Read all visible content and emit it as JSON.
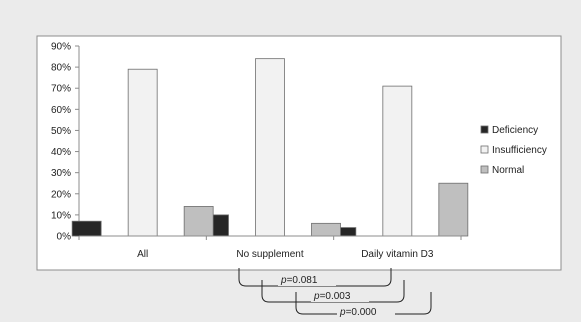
{
  "chart_data": {
    "type": "bar",
    "title": "",
    "xlabel": "",
    "ylabel": "",
    "categories": [
      "All",
      "No supplement",
      "Daily vitamin  D3"
    ],
    "series": [
      {
        "name": "Deficiency",
        "values": [
          7,
          10,
          4
        ],
        "color": "#262626"
      },
      {
        "name": "Insufficiency",
        "values": [
          79,
          84,
          71
        ],
        "color": "#f2f2f2"
      },
      {
        "name": "Normal",
        "values": [
          14,
          6,
          25
        ],
        "color": "#bfbfbf"
      }
    ],
    "ylim": [
      0,
      90
    ],
    "yticks": [
      "0%",
      "10%",
      "20%",
      "30%",
      "40%",
      "50%",
      "60%",
      "70%",
      "80%",
      "90%"
    ],
    "grid": false,
    "legend_position": "right",
    "comparisons": [
      {
        "p_prefix": "p",
        "p_value": "=0.081"
      },
      {
        "p_prefix": "p",
        "p_value": "=0.003"
      },
      {
        "p_prefix": "p",
        "p_value": "=0.000"
      }
    ]
  }
}
